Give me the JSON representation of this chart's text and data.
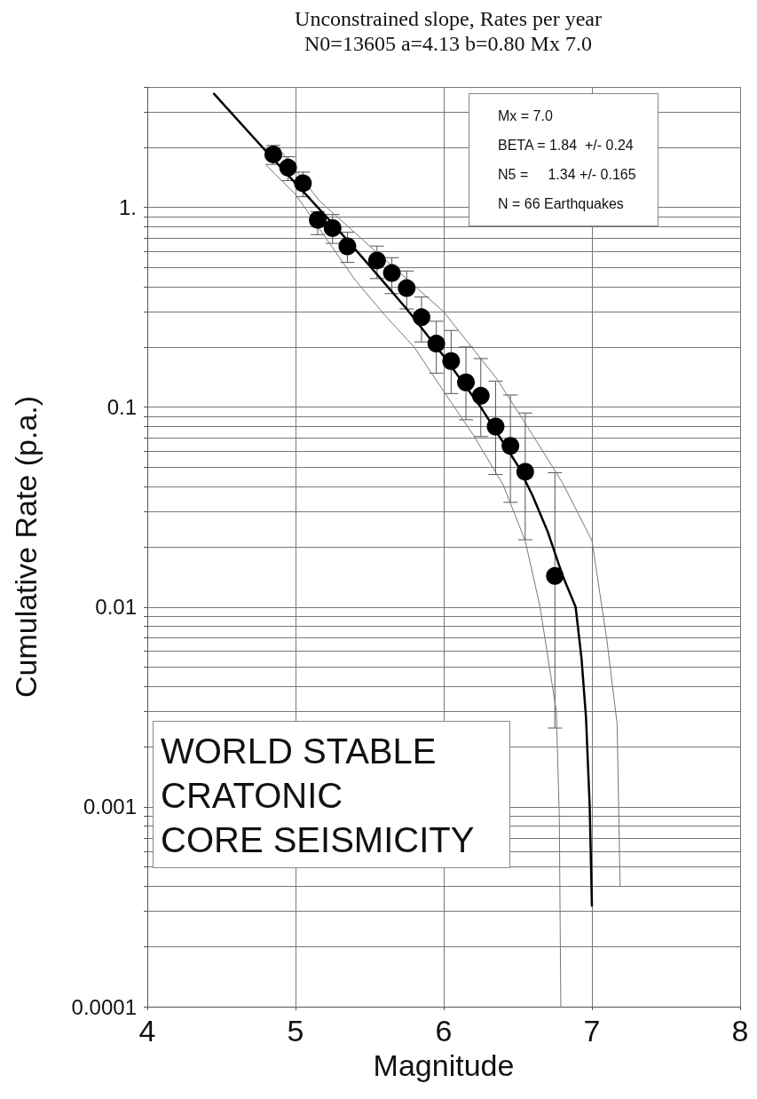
{
  "chart_data": {
    "type": "scatter",
    "title": "Unconstrained slope, Rates per year",
    "subtitle": "N0=13605 a=4.13 b=0.80 Mx 7.0",
    "xlabel": "Magnitude",
    "ylabel": "Cumulative Rate (p.a.)",
    "log": "y",
    "xlim": [
      4,
      8
    ],
    "xticks": [
      4,
      5,
      6,
      7,
      8
    ],
    "ylim": [
      0.0001,
      4
    ],
    "yticks": [
      0.0001,
      {
        "value": 0.0002,
        "label": null
      },
      {
        "value": 0.0003,
        "label": null
      },
      {
        "value": 0.0004,
        "label": null
      },
      {
        "value": 0.0005,
        "label": null
      },
      {
        "value": 0.0006,
        "label": null
      },
      {
        "value": 0.0007,
        "label": null
      },
      {
        "value": 0.0008,
        "label": null
      },
      {
        "value": 0.0009,
        "label": null
      },
      0.001,
      {
        "value": 0.002,
        "label": null
      },
      {
        "value": 0.003,
        "label": null
      },
      {
        "value": 0.004,
        "label": null
      },
      {
        "value": 0.005,
        "label": null
      },
      {
        "value": 0.006,
        "label": null
      },
      {
        "value": 0.007,
        "label": null
      },
      {
        "value": 0.008,
        "label": null
      },
      {
        "value": 0.009,
        "label": null
      },
      0.01,
      {
        "value": 0.02,
        "label": null
      },
      {
        "value": 0.03,
        "label": null
      },
      {
        "value": 0.04,
        "label": null
      },
      {
        "value": 0.05,
        "label": null
      },
      {
        "value": 0.06,
        "label": null
      },
      {
        "value": 0.07,
        "label": null
      },
      {
        "value": 0.08,
        "label": null
      },
      {
        "value": 0.09,
        "label": null
      },
      0.1,
      {
        "value": 0.2,
        "label": null
      },
      {
        "value": 0.3,
        "label": null
      },
      {
        "value": 0.4,
        "label": null
      },
      {
        "value": 0.5,
        "label": null
      },
      {
        "value": 0.6,
        "label": null
      },
      {
        "value": 0.7,
        "label": null
      },
      {
        "value": 0.8,
        "label": null
      },
      {
        "value": 0.9,
        "label": null
      },
      {
        "value": 1,
        "label": "1."
      },
      {
        "value": 2,
        "label": null
      },
      {
        "value": 3,
        "label": null
      },
      {
        "value": 4,
        "label": null
      }
    ],
    "tick_labels": "xy",
    "grid": true,
    "marker": "circle",
    "series": [
      {
        "color": "#000000",
        "x": [
          4.85,
          4.95,
          5.05,
          5.15,
          5.25,
          5.35,
          5.55,
          5.65,
          5.75,
          5.85,
          5.95,
          6.05,
          6.15,
          6.25,
          6.35,
          6.45,
          6.55,
          6.75
        ],
        "values": [
          1.84,
          1.58,
          1.32,
          0.865,
          0.787,
          0.638,
          0.542,
          0.469,
          0.394,
          0.282,
          0.208,
          0.17,
          0.133,
          0.114,
          0.08,
          0.064,
          0.0475,
          0.0143
        ],
        "errors": [
          [
            1.64,
            2.04
          ],
          [
            1.36,
            1.79
          ],
          [
            1.13,
            1.5
          ],
          [
            0.73,
            0.95
          ],
          [
            0.66,
            0.92
          ],
          [
            0.53,
            0.75
          ],
          [
            0.44,
            0.64
          ],
          [
            0.37,
            0.56
          ],
          [
            0.31,
            0.48
          ],
          [
            0.212,
            0.356
          ],
          [
            0.148,
            0.269
          ],
          [
            0.117,
            0.242
          ],
          [
            0.0865,
            0.2
          ],
          [
            0.0713,
            0.175
          ],
          [
            0.046,
            0.135
          ],
          [
            0.0334,
            0.115
          ],
          [
            0.0217,
            0.0935
          ],
          [
            0.00248,
            0.047
          ]
        ]
      },
      {
        "type": "line",
        "color": "#000000",
        "marker": "none",
        "x": [
          4.45,
          4.75,
          5.0,
          5.25,
          5.5,
          5.75,
          6.0,
          6.25,
          6.5,
          6.6,
          6.7,
          6.8,
          6.89,
          6.93,
          6.96,
          6.985,
          7.0
        ],
        "values": [
          3.7,
          2.1,
          1.32,
          0.83,
          0.51,
          0.31,
          0.18,
          0.1,
          0.051,
          0.036,
          0.024,
          0.0145,
          0.01,
          0.0055,
          0.0028,
          0.001,
          0.00032
        ]
      },
      {
        "type": "line",
        "color": "#777777",
        "marker": "none",
        "x": [
          4.8,
          5.0,
          5.4,
          5.6,
          5.8,
          6.0,
          6.2,
          6.4,
          6.55,
          6.65,
          6.76,
          6.78,
          6.79
        ],
        "values": [
          1.63,
          1.16,
          0.435,
          0.29,
          0.2,
          0.12,
          0.0725,
          0.041,
          0.0214,
          0.01,
          0.003,
          0.00088,
          0.0001
        ]
      },
      {
        "type": "line",
        "color": "#777777",
        "marker": "none",
        "x": [
          4.88,
          5.16,
          5.5,
          6.0,
          6.36,
          6.6,
          6.8,
          7.0,
          7.1,
          7.17,
          7.19
        ],
        "values": [
          2.0,
          1.08,
          0.64,
          0.3,
          0.138,
          0.0726,
          0.042,
          0.0215,
          0.0069,
          0.0026,
          0.0004
        ]
      }
    ],
    "annotations": [
      "Mx = 7.0\nBETA = 1.84  +/- 0.24\nN5 =     1.34 +/- 0.165\nN = 66 Earthquakes",
      "WORLD STABLE\nCRATONIC\nCORE SEISMICITY"
    ]
  }
}
